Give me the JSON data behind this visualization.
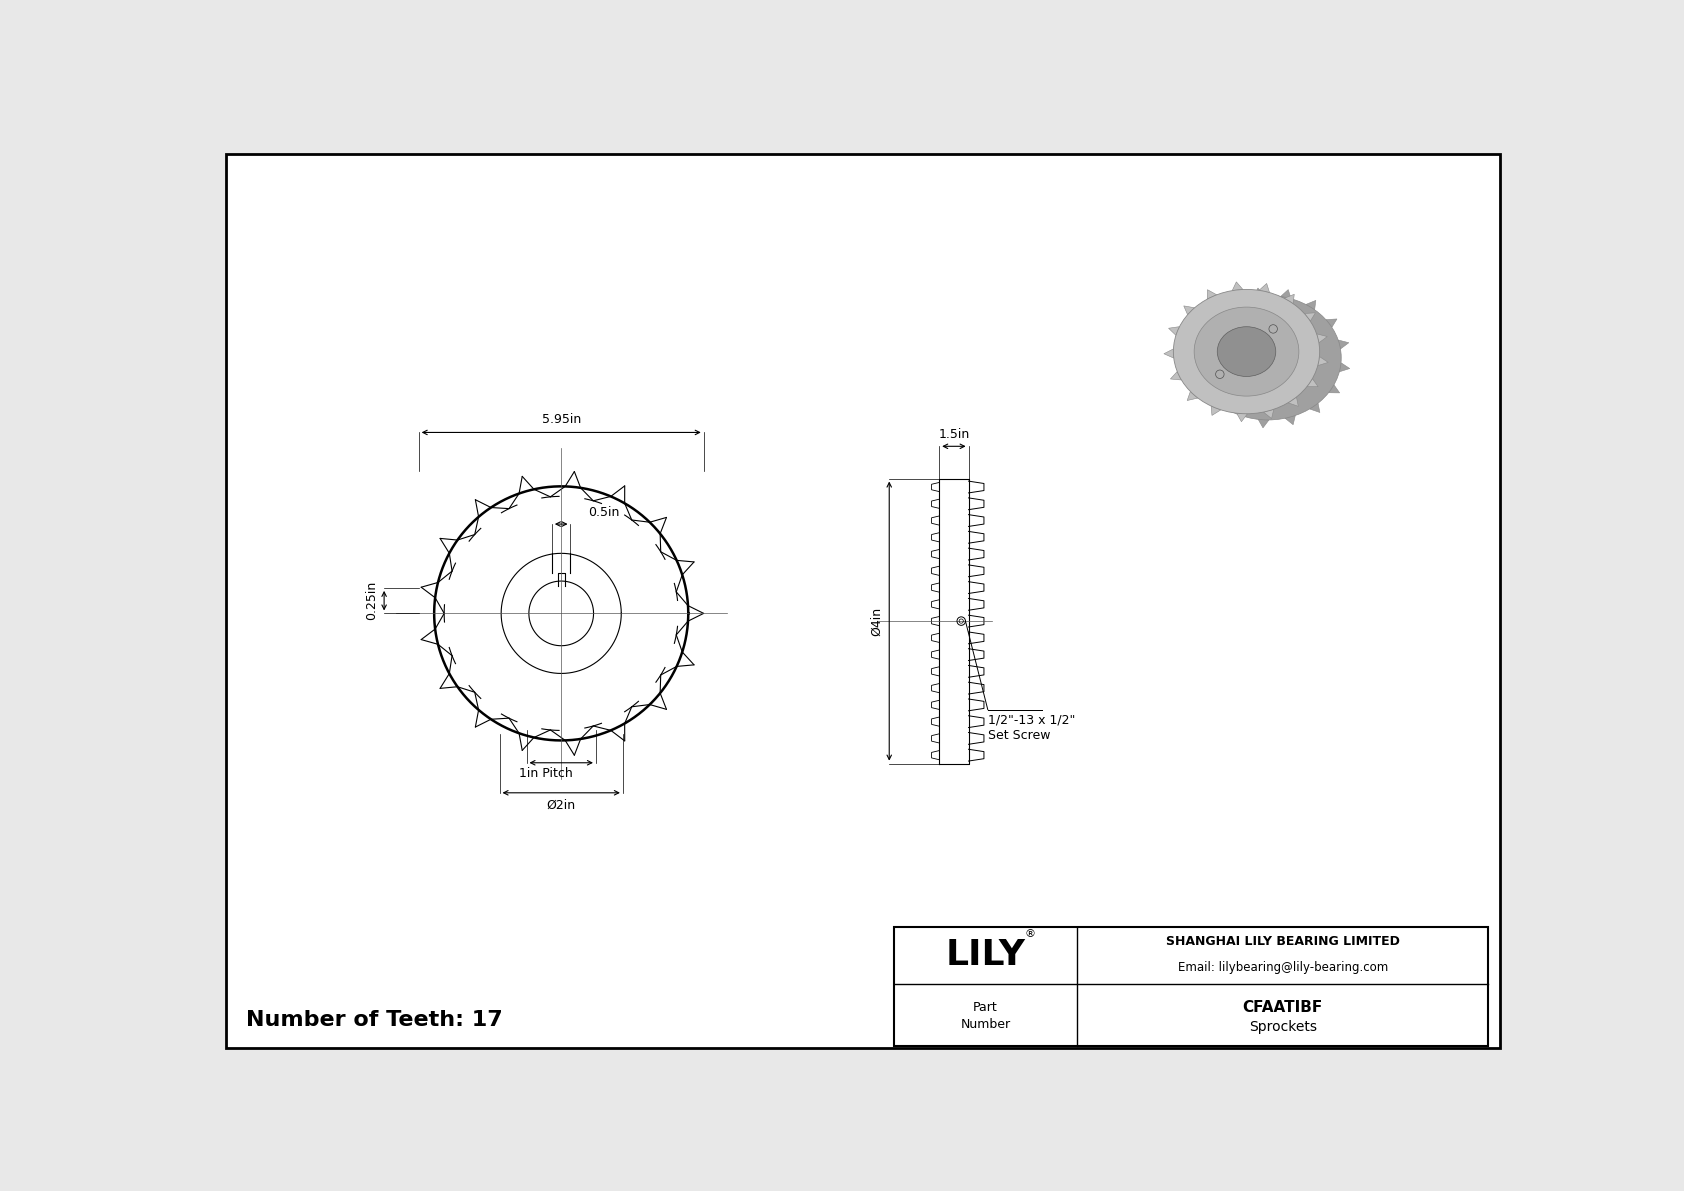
{
  "bg_color": "#e8e8e8",
  "drawing_bg": "#ffffff",
  "border_color": "#000000",
  "line_color": "#000000",
  "title_company": "SHANGHAI LILY BEARING LIMITED",
  "title_email": "Email: lilybearing@lily-bearing.com",
  "part_number": "CFAATIBF",
  "part_category": "Sprockets",
  "brand": "LILY",
  "num_teeth": "17",
  "dim_595": "5.95in",
  "dim_05": "0.5in",
  "dim_025": "0.25in",
  "dim_1pitch": "1in Pitch",
  "dim_2in": "Ø2in",
  "dim_15": "1.5in",
  "dim_4in": "Ø4in",
  "dim_set_screw_line1": "1/2\"-13 x 1/2\"",
  "dim_set_screw_line2": "Set Screw",
  "font_size_dim": 9,
  "font_size_brand": 26,
  "font_size_company": 9,
  "font_size_part": 11,
  "font_size_teeth": 14
}
